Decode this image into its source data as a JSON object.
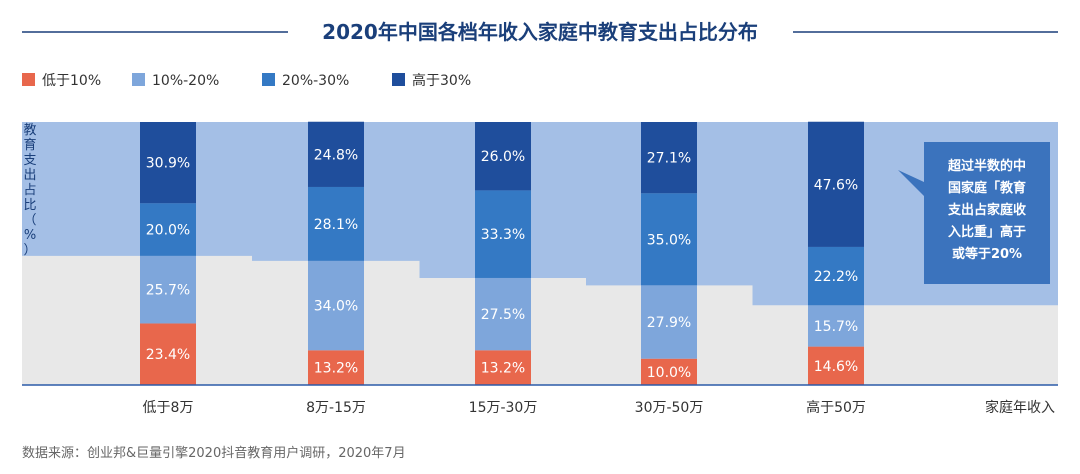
{
  "chart_data": {
    "type": "bar",
    "stacked": true,
    "title": "2020年中国各档年收入家庭中教育支出占比分布",
    "xlabel": "家庭年收入",
    "ylabel": "教育支出占比（%）",
    "categories": [
      "低于8万",
      "8万-15万",
      "15万-30万",
      "30万-50万",
      "高于50万"
    ],
    "series": [
      {
        "name": "低于10%",
        "color": "#e8674c",
        "values": [
          23.4,
          13.2,
          13.2,
          10.0,
          14.6
        ],
        "labels": [
          "23.4%",
          "13.2%",
          "13.2%",
          "10.0%",
          "14.6%"
        ]
      },
      {
        "name": "10%-20%",
        "color": "#7ea6db",
        "values": [
          25.7,
          34.0,
          27.5,
          27.9,
          15.7
        ],
        "labels": [
          "25.7%",
          "34.0%",
          "27.5%",
          "27.9%",
          "15.7%"
        ]
      },
      {
        "name": "20%-30%",
        "color": "#3479c4",
        "values": [
          20.0,
          28.1,
          33.3,
          35.0,
          22.2
        ],
        "labels": [
          "20.0%",
          "28.1%",
          "33.3%",
          "35.0%",
          "22.2%"
        ]
      },
      {
        "name": "高于30%",
        "color": "#1f4e9c",
        "values": [
          30.9,
          24.8,
          26.0,
          27.1,
          47.6
        ],
        "labels": [
          "30.9%",
          "24.8%",
          "26.0%",
          "27.1%",
          "47.6%"
        ]
      }
    ],
    "ylim": [
      0,
      100
    ],
    "legend": "top-left",
    "grid": false,
    "annotation_lines": [
      "超过半数的中",
      "国家庭「教育",
      "支出占家庭收",
      "入比重」高于",
      "或等于20%"
    ],
    "background_colors": {
      "upper": "#a4bfe6",
      "lower": "#e8e8e8"
    }
  },
  "source": "数据来源：创业邦&巨量引擎2020抖音教育用户调研，2020年7月"
}
